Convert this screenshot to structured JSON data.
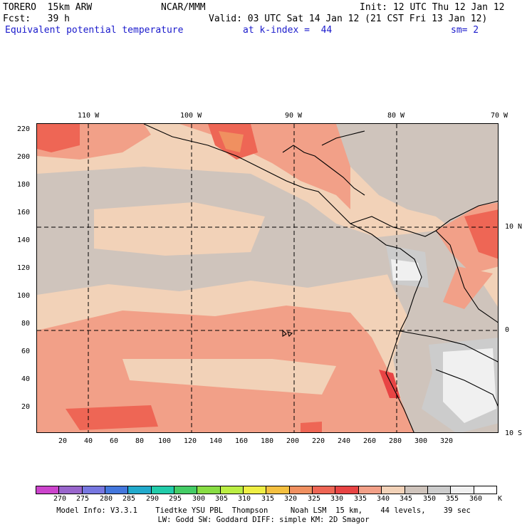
{
  "header": {
    "model": "TORERO  15km ARW",
    "org": "NCAR/MMM",
    "init": "Init: 12 UTC Thu 12 Jan 12",
    "fcst": "Fcst:   39 h",
    "valid": "Valid: 03 UTC Sat 14 Jan 12 (21 CST Fri 13 Jan 12)",
    "field": "Equivalent potential temperature",
    "level": "at k-index =  44",
    "smooth": "sm= 2"
  },
  "map": {
    "lon_labels": [
      "110 W",
      "100 W",
      "90 W",
      "80 W",
      "70 W"
    ],
    "lat_labels": [
      "10 N",
      "0",
      "10 S"
    ],
    "grid_y_labels": [
      "220",
      "200",
      "180",
      "160",
      "140",
      "120",
      "100",
      "80",
      "60",
      "40",
      "20"
    ],
    "grid_x_labels": [
      "20",
      "40",
      "60",
      "80",
      "100",
      "120",
      "140",
      "160",
      "180",
      "200",
      "220",
      "240",
      "260",
      "280",
      "300",
      "320"
    ]
  },
  "colorbar": {
    "labels": [
      "270",
      "275",
      "280",
      "285",
      "290",
      "295",
      "300",
      "305",
      "310",
      "315",
      "320",
      "325",
      "330",
      "335",
      "340",
      "345",
      "350",
      "355",
      "360"
    ],
    "unit": "K",
    "colors": [
      "#cc44cc",
      "#9966cc",
      "#7777e0",
      "#4477dd",
      "#22aacc",
      "#22ccaa",
      "#44cc66",
      "#88dd44",
      "#bbee44",
      "#eeee44",
      "#f4c040",
      "#f09060",
      "#ee6655",
      "#e84444",
      "#f2a088",
      "#f2d2b8",
      "#cfc4bc",
      "#cccccc",
      "#f0f0f0",
      "#ffffff"
    ]
  },
  "footer": {
    "line1": "Model Info: V3.3.1    Tiedtke YSU PBL  Thompson     Noah LSM  15 km,    44 levels,    39 sec",
    "line2": "LW: Godd SW: Goddard DIFF: simple KM: 2D Smagor"
  }
}
